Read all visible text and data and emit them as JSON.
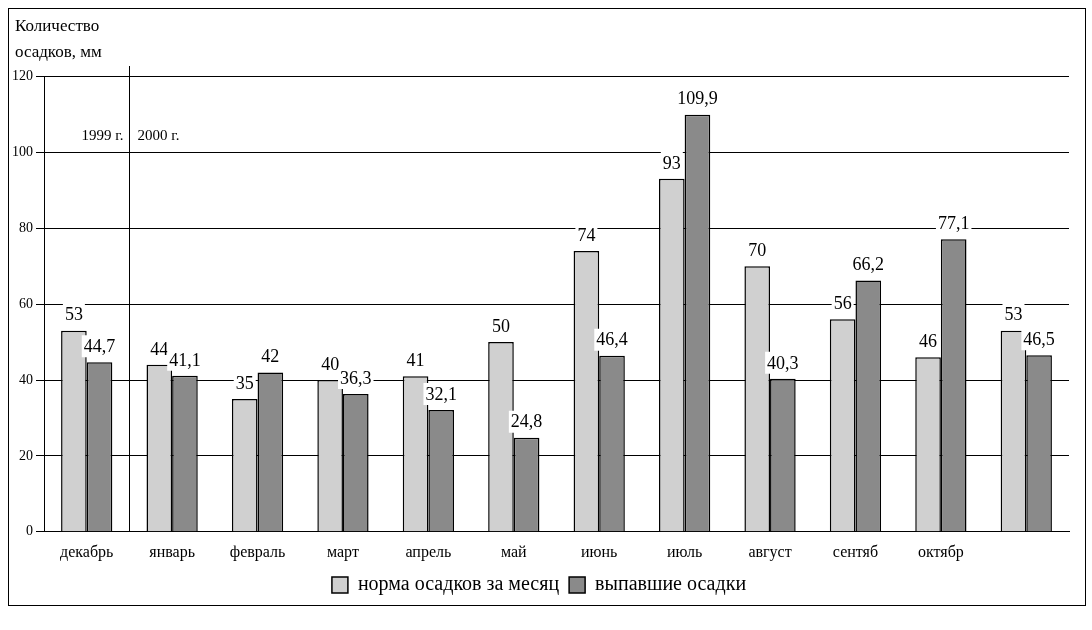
{
  "chart_data": {
    "type": "bar",
    "ylabel": "Количество осадков, мм",
    "categories": [
      "декабрь",
      "январь",
      "февраль",
      "март",
      "апрель",
      "май",
      "июнь",
      "июль",
      "август",
      "сентяб",
      "октябр",
      null
    ],
    "series": [
      {
        "name": "норма осадков за месяц",
        "color": "#d0d0d0",
        "values": [
          53,
          44,
          35,
          40,
          41,
          50,
          74,
          93,
          70,
          56,
          46,
          53
        ],
        "value_labels": [
          "53",
          "44",
          "35",
          "40",
          "41",
          "50",
          "74",
          "93",
          "70",
          "56",
          "46",
          "53"
        ]
      },
      {
        "name": "выпавшие осадки",
        "color": "#8a8a8a",
        "values": [
          44.7,
          41.1,
          42,
          36.3,
          32.1,
          24.8,
          46.4,
          109.9,
          40.3,
          66.2,
          77.1,
          46.5
        ],
        "value_labels": [
          "44,7",
          "41,1",
          "42",
          "36,3",
          "32,1",
          "24,8",
          "46,4",
          "109,9",
          "40,3",
          "66,2",
          "77,1",
          "46,5"
        ]
      }
    ],
    "annotations": [
      "1999 г.",
      "2000 г."
    ],
    "ylim": [
      0,
      120
    ],
    "yticks": [
      0,
      20,
      40,
      60,
      80,
      100,
      120
    ],
    "grid": "y",
    "legend": "bottom"
  }
}
